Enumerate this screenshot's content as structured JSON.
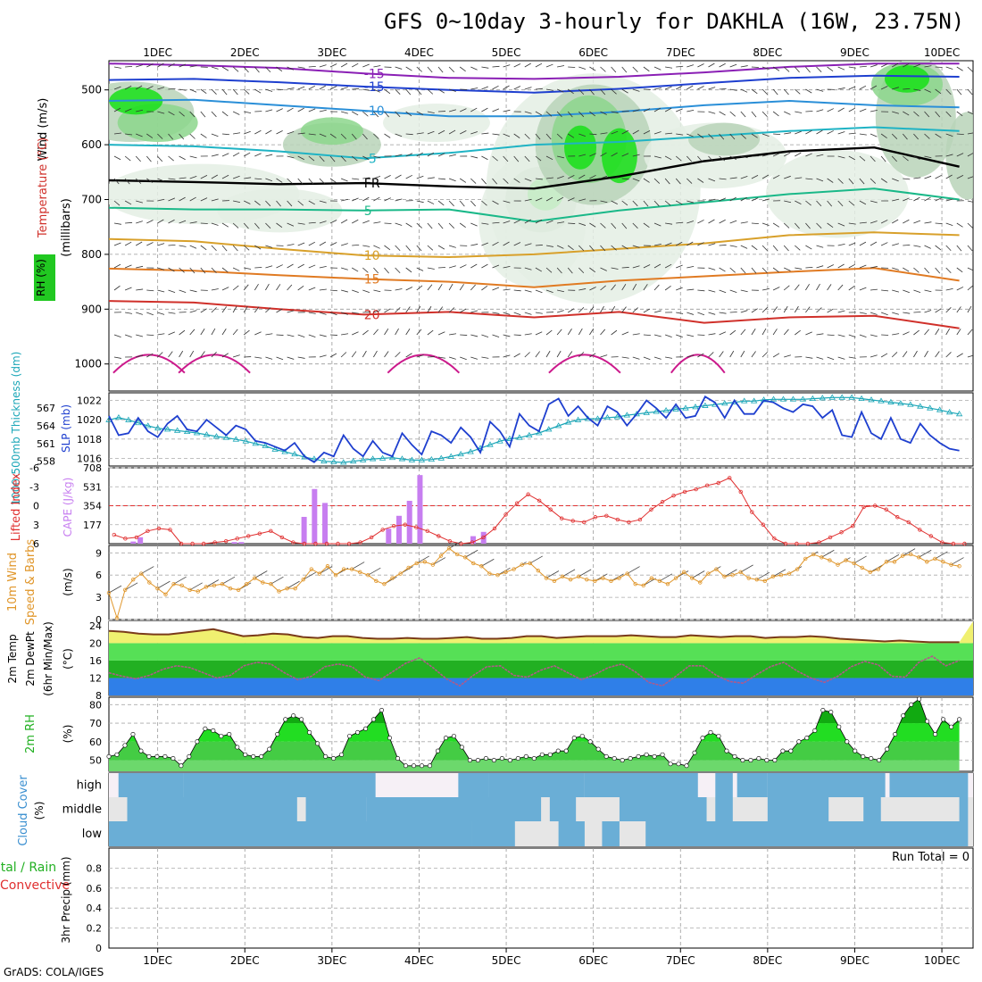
{
  "title": "GFS 0~10day 3-hourly for DAKHLA (16W, 23.75N)",
  "credit": "GrADS: COLA/IGES",
  "chart_data": {
    "type": "meteogram",
    "x_labels": [
      "1DEC",
      "2DEC",
      "3DEC",
      "4DEC",
      "5DEC",
      "6DEC",
      "7DEC",
      "8DEC",
      "9DEC",
      "10DEC"
    ],
    "day_start": 0.44,
    "day_count": 9.76,
    "panels": {
      "upper_air": {
        "labels": {
          "rh": "RH (%)",
          "temp": "Temperature (°C)",
          "wind": "Wind (m/s)",
          "axis": "(millibars)"
        },
        "y_ticks": [
          500,
          600,
          700,
          800,
          900,
          1000
        ],
        "ylim": [
          450,
          1000
        ],
        "temperature_isotherms": [
          {
            "label": "-15",
            "color": "#8a1fb5",
            "p": [
              452,
              455,
              460,
              470,
              478,
              480,
              476,
              468,
              458,
              452,
              452
            ]
          },
          {
            "label": "-15",
            "color": "#1e3fcf",
            "p": [
              482,
              480,
              486,
              494,
              500,
              505,
              498,
              488,
              478,
              474,
              476
            ]
          },
          {
            "label": "-10",
            "color": "#2a8fd8",
            "p": [
              520,
              518,
              528,
              538,
              548,
              548,
              540,
              528,
              520,
              528,
              532
            ]
          },
          {
            "label": "-5",
            "color": "#1fb3c4",
            "p": [
              600,
              603,
              612,
              625,
              615,
              600,
              595,
              585,
              575,
              568,
              575
            ]
          },
          {
            "label": "FR",
            "color": "#000000",
            "p": [
              665,
              668,
              672,
              670,
              676,
              680,
              658,
              630,
              612,
              605,
              640
            ]
          },
          {
            "label": "5",
            "color": "#19b888",
            "p": [
              715,
              718,
              718,
              720,
              718,
              740,
              720,
              705,
              690,
              680,
              700
            ]
          },
          {
            "label": "10",
            "color": "#d8a02a",
            "p": [
              772,
              776,
              790,
              802,
              805,
              800,
              790,
              780,
              765,
              760,
              765
            ]
          },
          {
            "label": "15",
            "color": "#e07a22",
            "p": [
              826,
              830,
              838,
              845,
              850,
              860,
              848,
              840,
              832,
              825,
              848
            ]
          },
          {
            "label": "20",
            "color": "#d0302a",
            "p": [
              885,
              888,
              900,
              910,
              905,
              915,
              905,
              925,
              915,
              912,
              935
            ]
          }
        ]
      },
      "slp_thickness": {
        "labels": {
          "slp": "SLP (mb)",
          "thickness": "1000-500mb Thickness (dm)"
        },
        "slp_ticks": [
          1016,
          1018,
          1020,
          1022
        ],
        "thickness_ticks": [
          558,
          561,
          564,
          567
        ],
        "slp_ylim": [
          1015.2,
          1022.8
        ],
        "thickness_ylim": [
          557.2,
          569.6
        ],
        "slp": [
          1020.4,
          1018.4,
          1018.6,
          1020.2,
          1018.8,
          1018.2,
          1019.6,
          1020.4,
          1019.0,
          1018.8,
          1020.0,
          1019.2,
          1018.4,
          1019.4,
          1019.0,
          1017.8,
          1017.6,
          1017.2,
          1016.8,
          1017.6,
          1016.2,
          1015.6,
          1016.6,
          1016.2,
          1018.4,
          1017.0,
          1016.2,
          1017.8,
          1016.6,
          1016.2,
          1018.6,
          1017.4,
          1016.4,
          1018.8,
          1018.4,
          1017.6,
          1019.2,
          1018.2,
          1016.6,
          1019.8,
          1018.8,
          1017.2,
          1020.6,
          1019.4,
          1018.8,
          1021.6,
          1022.2,
          1020.4,
          1021.4,
          1020.2,
          1019.4,
          1021.4,
          1020.8,
          1019.4,
          1020.6,
          1022.0,
          1021.2,
          1020.2,
          1021.6,
          1020.2,
          1020.4,
          1022.4,
          1021.8,
          1020.2,
          1022.0,
          1020.6,
          1020.6,
          1022.0,
          1021.8,
          1021.2,
          1020.8,
          1021.6,
          1021.4,
          1020.2,
          1021.0,
          1018.4,
          1018.2,
          1020.8,
          1018.6,
          1018.0,
          1020.2,
          1018.0,
          1017.6,
          1019.6,
          1018.4,
          1017.6,
          1017.0,
          1016.8
        ],
        "thickness": [
          565.0,
          565.4,
          565.0,
          564.5,
          564.0,
          563.6,
          563.4,
          563.2,
          563.0,
          562.8,
          562.5,
          562.2,
          562.0,
          561.7,
          561.4,
          561.0,
          560.6,
          560.0,
          559.6,
          559.2,
          558.7,
          558.4,
          558.0,
          557.9,
          557.8,
          558.0,
          558.2,
          558.4,
          558.5,
          558.6,
          558.4,
          558.2,
          558.2,
          558.3,
          558.5,
          558.8,
          559.2,
          559.6,
          560.2,
          560.8,
          561.4,
          561.8,
          562.0,
          562.4,
          562.8,
          563.4,
          564.0,
          564.6,
          565.0,
          565.2,
          565.2,
          565.4,
          565.5,
          565.8,
          566.0,
          566.2,
          566.4,
          566.6,
          566.8,
          567.0,
          567.2,
          567.4,
          567.6,
          567.8,
          568.0,
          568.2,
          568.2,
          568.4,
          568.5,
          568.5,
          568.5,
          568.5,
          568.6,
          568.7,
          568.8,
          568.8,
          568.8,
          568.6,
          568.4,
          568.2,
          568.0,
          567.8,
          567.6,
          567.3,
          567.0,
          566.7,
          566.3,
          566.0
        ]
      },
      "li_cape": {
        "labels": {
          "li": "Lifted Index",
          "cape": "CAPE (J/kg)"
        },
        "li_ticks": [
          6,
          3,
          0,
          -3,
          -6
        ],
        "cape_ticks": [
          177,
          354,
          531,
          708
        ],
        "li_ylim": [
          6,
          -6
        ],
        "cape_ylim": [
          0,
          708
        ],
        "cape": [
          0,
          0,
          0,
          0,
          50,
          0,
          0,
          0,
          0,
          0,
          0,
          0,
          0,
          0,
          0,
          0,
          0,
          0,
          0,
          0,
          0,
          0,
          0,
          0,
          0,
          0,
          0,
          0,
          0,
          0,
          0,
          0,
          0,
          0,
          0,
          0,
          0,
          0,
          0,
          0,
          0,
          0,
          0,
          0,
          0,
          0,
          0,
          0,
          0,
          0,
          0,
          0,
          0,
          0,
          0,
          0,
          0,
          0,
          0,
          0,
          0,
          0,
          0,
          0,
          0,
          0,
          0,
          0,
          0,
          0,
          0,
          0,
          0,
          0,
          0,
          0,
          0,
          0,
          0,
          0,
          0,
          0,
          0,
          0,
          0,
          0,
          0,
          0
        ],
        "cape_bars": [
          {
            "day": 0.72,
            "v": 20
          },
          {
            "day": 0.8,
            "v": 60
          },
          {
            "day": 1.88,
            "v": 15
          },
          {
            "day": 1.96,
            "v": 15
          },
          {
            "day": 2.68,
            "v": 250
          },
          {
            "day": 2.8,
            "v": 510
          },
          {
            "day": 2.92,
            "v": 380
          },
          {
            "day": 3.65,
            "v": 140
          },
          {
            "day": 3.77,
            "v": 260
          },
          {
            "day": 3.89,
            "v": 400
          },
          {
            "day": 4.01,
            "v": 640
          },
          {
            "day": 4.62,
            "v": 70
          },
          {
            "day": 4.74,
            "v": 110
          }
        ],
        "li": [
          4.6,
          5.2,
          5.0,
          4.0,
          3.6,
          3.8,
          6.0,
          6.0,
          6.0,
          5.8,
          5.6,
          5.2,
          4.8,
          4.4,
          4.0,
          5.0,
          5.8,
          6.0,
          6.0,
          6.0,
          6.0,
          6.0,
          5.8,
          5.0,
          3.8,
          3.2,
          3.0,
          3.4,
          4.0,
          4.8,
          5.6,
          6.0,
          5.8,
          5.0,
          3.6,
          1.4,
          -0.4,
          -1.8,
          -0.8,
          0.6,
          2.0,
          2.4,
          2.6,
          1.8,
          1.6,
          2.2,
          2.6,
          2.2,
          0.6,
          -0.6,
          -1.6,
          -2.2,
          -2.6,
          -3.2,
          -3.6,
          -4.4,
          -2.2,
          1.0,
          3.0,
          5.2,
          6.0,
          6.0,
          6.0,
          5.8,
          5.0,
          4.2,
          3.2,
          0.2,
          0.0,
          0.6,
          1.8,
          2.6,
          3.8,
          4.8,
          5.8,
          6.0,
          6.0
        ],
        "li_day_start": 0.5,
        "li_zero_line": true
      },
      "wind10m": {
        "labels": {
          "main": "10m Wind",
          "sub": "Speed & Barbs",
          "unit": "(m/s)"
        },
        "y_ticks": [
          0,
          3,
          6,
          9
        ],
        "ylim": [
          0,
          10
        ],
        "speed": [
          3.6,
          0.2,
          4.0,
          5.4,
          6.2,
          5.0,
          4.2,
          3.4,
          4.8,
          4.6,
          4.0,
          3.8,
          4.4,
          4.6,
          4.8,
          4.2,
          4.0,
          4.8,
          5.6,
          5.0,
          4.8,
          3.8,
          4.2,
          4.2,
          5.4,
          6.8,
          6.2,
          7.2,
          6.0,
          6.8,
          6.8,
          6.4,
          6.0,
          5.2,
          4.8,
          5.6,
          6.2,
          7.0,
          7.6,
          7.8,
          7.4,
          8.6,
          9.6,
          8.8,
          8.4,
          7.6,
          7.2,
          6.2,
          6.0,
          6.4,
          6.8,
          7.4,
          7.6,
          6.6,
          5.6,
          5.2,
          5.8,
          5.4,
          5.8,
          5.4,
          5.2,
          5.6,
          5.2,
          5.6,
          6.2,
          4.8,
          4.6,
          5.6,
          5.2,
          4.8,
          5.6,
          6.4,
          5.6,
          5.0,
          6.2,
          6.8,
          5.8,
          6.0,
          6.4,
          5.6,
          5.4,
          5.2,
          5.8,
          6.0,
          6.2,
          6.8,
          8.2,
          8.8,
          8.4,
          8.0,
          7.4,
          8.0,
          7.6,
          7.0,
          6.4,
          6.8,
          7.8,
          7.8,
          8.6,
          8.8,
          8.4,
          7.8,
          8.2,
          7.8,
          7.4,
          7.2
        ]
      },
      "temp_dewpt": {
        "labels": {
          "a": "2m Temp",
          "b": "2m DewPt",
          "c": "(6hr Min/Max)",
          "unit": "(°C)"
        },
        "y_ticks": [
          8,
          12,
          16,
          20,
          24
        ],
        "ylim": [
          8,
          25
        ],
        "temp": [
          22.8,
          22.6,
          22.2,
          22.0,
          22.0,
          22.4,
          22.8,
          23.2,
          22.4,
          21.6,
          21.8,
          22.2,
          22.0,
          21.4,
          21.2,
          21.6,
          21.6,
          21.2,
          21.0,
          21.0,
          21.2,
          21.0,
          21.0,
          21.2,
          21.4,
          21.0,
          21.0,
          21.2,
          21.6,
          21.6,
          21.2,
          21.4,
          21.6,
          21.6,
          21.6,
          21.8,
          21.6,
          21.4,
          21.4,
          21.8,
          21.6,
          21.4,
          21.6,
          21.6,
          21.2,
          21.4,
          21.4,
          21.6,
          21.4,
          21.0,
          20.8,
          20.6,
          20.4,
          20.6,
          20.4,
          20.2,
          20.2,
          20.2
        ],
        "dewpt": [
          13.2,
          12.4,
          11.8,
          12.6,
          14.0,
          14.8,
          14.4,
          13.2,
          12.0,
          12.6,
          14.8,
          15.6,
          15.2,
          13.2,
          11.6,
          12.4,
          14.6,
          15.2,
          14.6,
          12.2,
          11.4,
          13.4,
          15.4,
          16.6,
          14.4,
          11.8,
          10.2,
          12.6,
          14.6,
          14.8,
          12.6,
          12.2,
          13.8,
          14.8,
          13.2,
          11.6,
          12.8,
          14.4,
          15.2,
          13.4,
          11.0,
          10.2,
          12.4,
          14.8,
          14.8,
          12.6,
          11.2,
          10.8,
          12.8,
          14.6,
          15.6,
          13.6,
          12.0,
          11.0,
          12.4,
          14.6,
          15.8,
          15.0,
          12.4,
          12.2,
          15.6,
          17.0,
          14.8,
          16.0
        ]
      },
      "rh2m": {
        "labels": {
          "main": "2m RH",
          "unit": "(%)"
        },
        "y_ticks": [
          50,
          60,
          70,
          80
        ],
        "ylim": [
          44,
          84
        ],
        "values": [
          52,
          53,
          58,
          64,
          55,
          52,
          52,
          52,
          51,
          47,
          52,
          60,
          67,
          66,
          63,
          64,
          57,
          53,
          52,
          52,
          56,
          64,
          72,
          74,
          72,
          65,
          59,
          52,
          51,
          53,
          63,
          65,
          67,
          72,
          77,
          62,
          51,
          47,
          47,
          47,
          47,
          55,
          62,
          63,
          57,
          50,
          50,
          51,
          50,
          51,
          50,
          51,
          52,
          51,
          53,
          53,
          55,
          55,
          62,
          63,
          60,
          56,
          52,
          51,
          50,
          51,
          52,
          53,
          52,
          53,
          48,
          48,
          47,
          54,
          62,
          65,
          63,
          55,
          52,
          50,
          50,
          51,
          50,
          50,
          55,
          55,
          60,
          62,
          66,
          77,
          76,
          68,
          60,
          55,
          52,
          51,
          50,
          56,
          64,
          74,
          80,
          83,
          71,
          64,
          72,
          68,
          72
        ]
      },
      "cloud": {
        "labels": {
          "main": "Cloud Cover",
          "unit": "(%)",
          "rows": [
            "high",
            "middle",
            "low"
          ]
        }
      },
      "precip": {
        "labels": {
          "a": "Total / Rain",
          "b": "Convective",
          "c": "3hr Precip (mm)",
          "run_total": "Run Total = 0"
        },
        "y_ticks": [
          0,
          0.2,
          0.4,
          0.6,
          0.8
        ],
        "ylim": [
          0,
          1
        ]
      }
    }
  }
}
